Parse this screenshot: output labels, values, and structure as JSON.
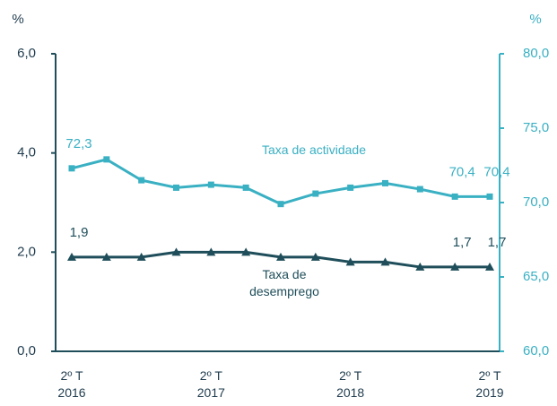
{
  "chart_data": {
    "type": "line",
    "ylabel": "%",
    "y2label": "%",
    "categories": [
      "2º T\n2016",
      null,
      null,
      null,
      "2º T\n2017",
      null,
      null,
      null,
      "2º T\n2018",
      null,
      null,
      null,
      "2º T\n2019"
    ],
    "ylim": [
      0,
      6
    ],
    "yticks": [
      {
        "value": 0,
        "label": "0,0"
      },
      {
        "value": 2,
        "label": "2,0"
      },
      {
        "value": 4,
        "label": "4,0"
      },
      {
        "value": 6,
        "label": "6,0"
      }
    ],
    "y2lim": [
      60,
      80
    ],
    "y2ticks": [
      {
        "value": 60,
        "label": "60,0"
      },
      {
        "value": 65,
        "label": "65,0"
      },
      {
        "value": 70,
        "label": "70,0"
      },
      {
        "value": 75,
        "label": "75,0"
      },
      {
        "value": 80,
        "label": "80,0"
      }
    ],
    "series": [
      {
        "name": "Taxa de actividade",
        "color": "#3ab0c3",
        "axis": "y2",
        "marker": "square",
        "values": [
          72.3,
          72.9,
          71.5,
          71.0,
          71.2,
          71.0,
          69.9,
          70.6,
          71.0,
          71.3,
          70.9,
          70.4,
          70.4
        ],
        "value_labels": [
          "72,3",
          null,
          null,
          null,
          null,
          null,
          null,
          null,
          null,
          null,
          null,
          "70,4",
          "70,4"
        ]
      },
      {
        "name": "Taxa de desemprego",
        "color": "#1f4e5a",
        "axis": "y",
        "marker": "triangle",
        "values": [
          1.9,
          1.9,
          1.9,
          2.0,
          2.0,
          2.0,
          1.9,
          1.9,
          1.8,
          1.8,
          1.7,
          1.7,
          1.7
        ],
        "value_labels": [
          "1,9",
          null,
          null,
          null,
          null,
          null,
          null,
          null,
          null,
          null,
          null,
          "1,7",
          "1,7"
        ]
      }
    ]
  }
}
